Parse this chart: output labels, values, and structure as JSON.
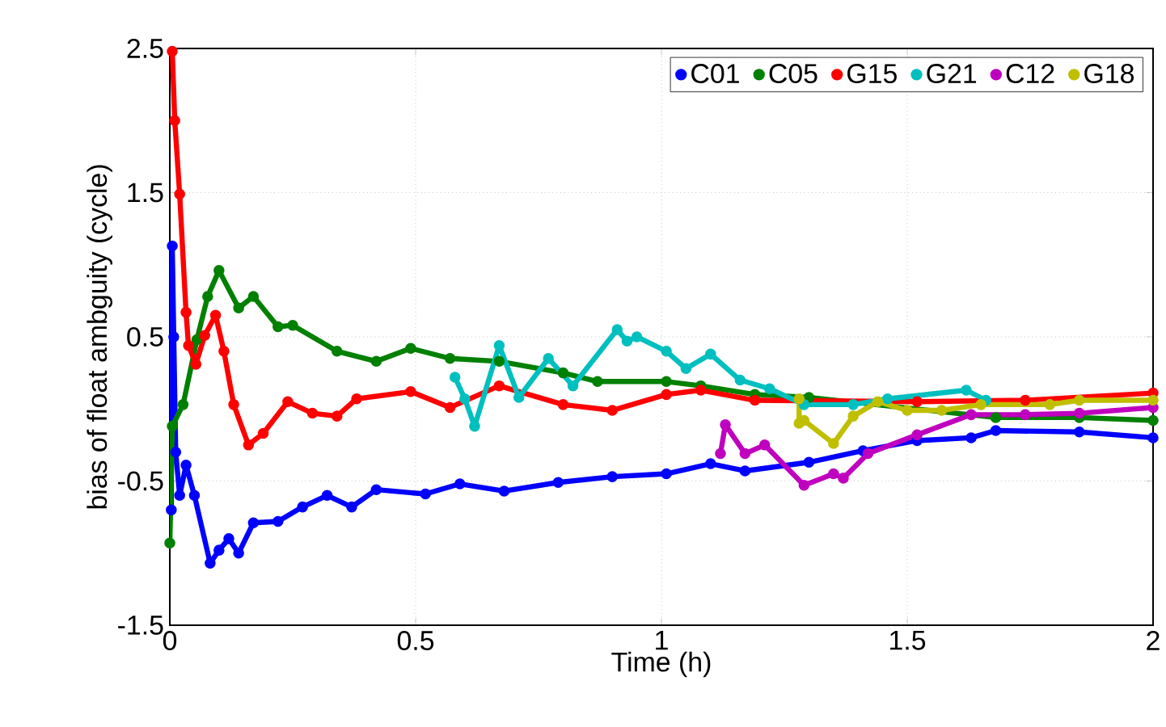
{
  "chart_data": {
    "type": "line",
    "xlabel": "Time (h)",
    "ylabel": "bias of float ambguity (cycle)",
    "xlim": [
      0,
      2
    ],
    "ylim": [
      -1.5,
      2.5
    ],
    "xticks": [
      0,
      0.5,
      1,
      1.5,
      2
    ],
    "yticks": [
      -1.5,
      -0.5,
      0.5,
      1.5,
      2.5
    ],
    "grid": true,
    "legend": "top right",
    "marker": "circle",
    "series": [
      {
        "name": "C01",
        "color": "#0000ff",
        "x": [
          0.003,
          0.005,
          0.008,
          0.012,
          0.02,
          0.033,
          0.05,
          0.082,
          0.1,
          0.12,
          0.14,
          0.17,
          0.22,
          0.27,
          0.32,
          0.37,
          0.42,
          0.52,
          0.59,
          0.68,
          0.79,
          0.9,
          1.01,
          1.1,
          1.17,
          1.3,
          1.41,
          1.52,
          1.63,
          1.68,
          1.85,
          2.0
        ],
        "values": [
          -0.7,
          1.13,
          0.5,
          -0.3,
          -0.6,
          -0.39,
          -0.6,
          -1.07,
          -0.98,
          -0.9,
          -1.0,
          -0.79,
          -0.78,
          -0.68,
          -0.6,
          -0.68,
          -0.56,
          -0.59,
          -0.52,
          -0.57,
          -0.51,
          -0.47,
          -0.45,
          -0.38,
          -0.43,
          -0.37,
          -0.29,
          -0.22,
          -0.2,
          -0.15,
          -0.16,
          -0.2
        ]
      },
      {
        "name": "C05",
        "color": "#008000",
        "x": [
          0.0,
          0.005,
          0.027,
          0.055,
          0.077,
          0.1,
          0.14,
          0.17,
          0.22,
          0.25,
          0.34,
          0.42,
          0.49,
          0.57,
          0.67,
          0.8,
          0.87,
          1.01,
          1.08,
          1.19,
          1.3,
          1.52,
          1.68,
          1.85,
          2.0
        ],
        "values": [
          -0.93,
          -0.12,
          0.03,
          0.48,
          0.78,
          0.96,
          0.7,
          0.78,
          0.57,
          0.58,
          0.4,
          0.33,
          0.42,
          0.35,
          0.33,
          0.25,
          0.19,
          0.19,
          0.16,
          0.1,
          0.08,
          null,
          -0.06,
          -0.06,
          -0.08
        ]
      },
      {
        "name": "G15",
        "color": "#ff0000",
        "x": [
          0.005,
          0.01,
          0.02,
          0.033,
          0.038,
          0.053,
          0.071,
          0.093,
          0.11,
          0.13,
          0.16,
          0.19,
          0.24,
          0.29,
          0.34,
          0.38,
          0.49,
          0.57,
          0.67,
          0.8,
          0.9,
          1.01,
          1.08,
          1.19,
          1.52,
          1.74,
          2.0
        ],
        "values": [
          2.48,
          2.0,
          1.49,
          0.67,
          0.44,
          0.31,
          0.51,
          0.65,
          0.4,
          0.03,
          -0.25,
          -0.17,
          0.05,
          -0.03,
          -0.05,
          0.07,
          0.12,
          0.01,
          0.16,
          0.03,
          -0.01,
          0.1,
          0.13,
          0.06,
          0.05,
          0.06,
          0.11
        ]
      },
      {
        "name": "G21",
        "color": "#00bfbf",
        "x": [
          0.58,
          0.6,
          0.62,
          0.67,
          0.71,
          0.77,
          0.82,
          0.91,
          0.93,
          0.95,
          1.01,
          1.05,
          1.1,
          1.16,
          1.22,
          1.29,
          1.39,
          1.46,
          1.62,
          1.66
        ],
        "values": [
          0.22,
          0.07,
          -0.12,
          0.44,
          0.08,
          0.35,
          0.16,
          0.55,
          0.47,
          0.5,
          0.4,
          0.28,
          0.38,
          0.2,
          0.14,
          0.03,
          0.03,
          0.07,
          0.13,
          0.06
        ]
      },
      {
        "name": "C12",
        "color": "#bf00bf",
        "x": [
          1.12,
          1.13,
          1.17,
          1.21,
          1.29,
          1.35,
          1.37,
          1.42,
          1.52,
          1.63,
          1.74,
          1.85,
          2.0
        ],
        "values": [
          -0.31,
          -0.11,
          -0.31,
          -0.25,
          -0.53,
          -0.45,
          -0.48,
          -0.31,
          -0.18,
          -0.04,
          -0.04,
          -0.03,
          0.01
        ]
      },
      {
        "name": "G18",
        "color": "#bfbf00",
        "x": [
          1.28,
          1.28,
          1.29,
          1.35,
          1.39,
          1.44,
          1.5,
          1.57,
          1.65,
          1.79,
          1.85,
          2.0
        ],
        "values": [
          0.07,
          -0.1,
          -0.08,
          -0.24,
          -0.05,
          0.05,
          -0.01,
          -0.01,
          0.03,
          0.03,
          0.06,
          0.06
        ]
      }
    ]
  }
}
